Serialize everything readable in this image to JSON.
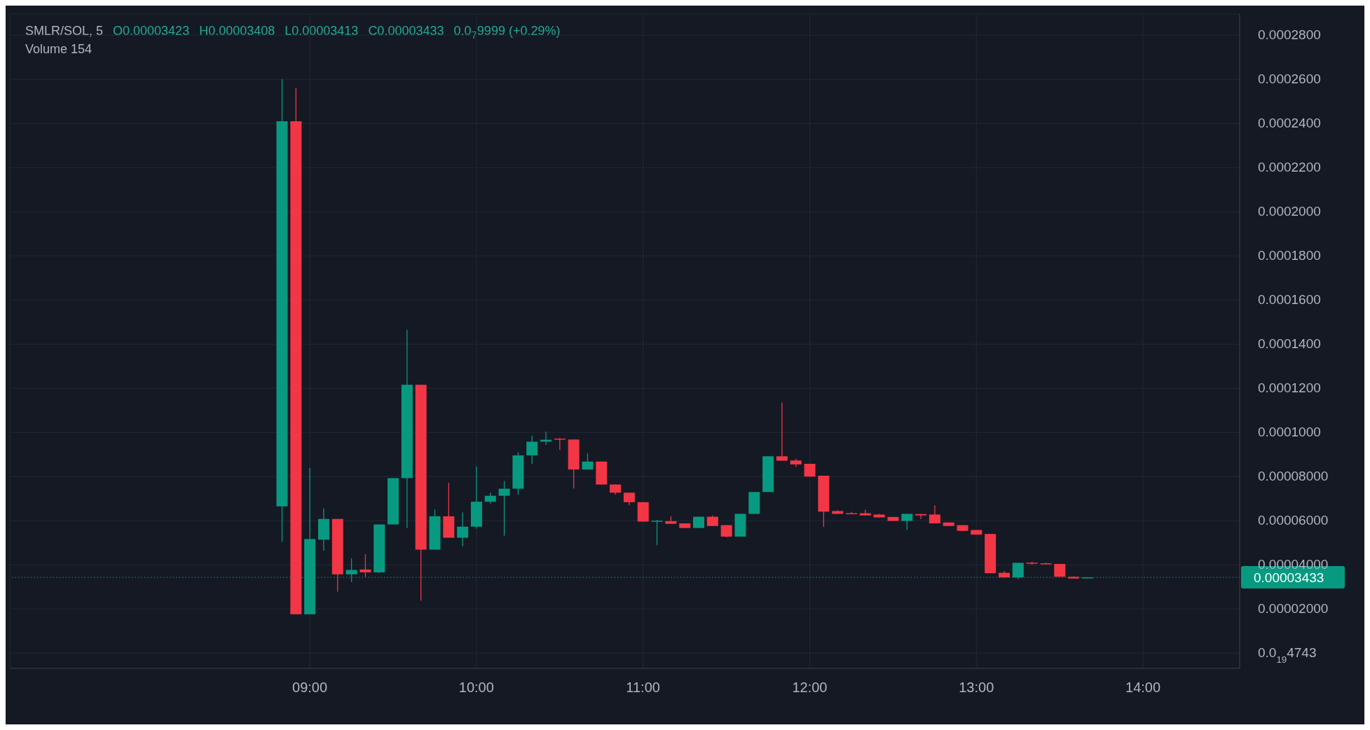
{
  "chart_data": {
    "type": "candlestick",
    "title": "SMLR/SOL, 5",
    "annotations": [
      "O0.00003423",
      "H0.00003408",
      "L0.00003413",
      "C0.00003433",
      "0.0$_{7}$9999 (+0.29%)",
      "Volume 154"
    ],
    "x": [
      8.8333,
      8.9167,
      9,
      9.0833,
      9.1667,
      9.25,
      9.3333,
      9.4167,
      9.5,
      9.5833,
      9.6667,
      9.75,
      9.8333,
      9.9167,
      10,
      10.0833,
      10.1667,
      10.25,
      10.3333,
      10.4167,
      10.5,
      10.5833,
      10.6667,
      10.75,
      10.8333,
      10.9167,
      11,
      11.0833,
      11.1667,
      11.25,
      11.3333,
      11.4167,
      11.5,
      11.5833,
      11.6667,
      11.75,
      11.8333,
      11.9167,
      12,
      12.0833,
      12.1667,
      12.25,
      12.3333,
      12.4167,
      12.5,
      12.5833,
      12.6667,
      12.75,
      12.8333,
      12.9167,
      13,
      13.0833,
      13.1667,
      13.25,
      13.3333,
      13.4167,
      13.5,
      13.5833,
      13.6667
    ],
    "ohlc": [
      [
        6.65e-05,
        0.00026,
        5.05e-05,
        0.000241
      ],
      [
        0.000241,
        0.000256,
        1.76e-05,
        1.76e-05
      ],
      [
        1.76e-05,
        8.39e-05,
        1.76e-05,
        5.17e-05
      ],
      [
        5.14e-05,
        6.56e-05,
        4.64e-05,
        6.08e-05
      ],
      [
        6.08e-05,
        6.08e-05,
        2.79e-05,
        3.57e-05
      ],
      [
        3.57e-05,
        4.3e-05,
        3.22e-05,
        3.77e-05
      ],
      [
        3.79e-05,
        4.48e-05,
        3.45e-05,
        3.66e-05
      ],
      [
        3.66e-05,
        5.83e-05,
        3.62e-05,
        5.83e-05
      ],
      [
        5.83e-05,
        7.93e-05,
        5.83e-05,
        7.93e-05
      ],
      [
        7.93e-05,
        0.0001465,
        5.67e-05,
        0.0001216
      ],
      [
        0.0001216,
        0.0001216,
        2.38e-05,
        4.69e-05
      ],
      [
        4.69e-05,
        6.51e-05,
        4.69e-05,
        6.2e-05
      ],
      [
        6.2e-05,
        7.72e-05,
        5.23e-05,
        5.23e-05
      ],
      [
        5.23e-05,
        6.38e-05,
        4.84e-05,
        5.73e-05
      ],
      [
        5.73e-05,
        8.46e-05,
        5.64e-05,
        6.86e-05
      ],
      [
        6.86e-05,
        7.27e-05,
        6.77e-05,
        7.13e-05
      ],
      [
        7.13e-05,
        7.8e-05,
        5.32e-05,
        7.45e-05
      ],
      [
        7.45e-05,
        9.1e-05,
        7.18e-05,
        8.96e-05
      ],
      [
        8.96e-05,
        9.85e-05,
        8.57e-05,
        9.58e-05
      ],
      [
        9.58e-05,
        0.0001003,
        9.44e-05,
        9.67e-05
      ],
      [
        9.72e-05,
        9.75e-05,
        9.21e-05,
        9.68e-05
      ],
      [
        9.68e-05,
        9.68e-05,
        7.46e-05,
        8.32e-05
      ],
      [
        8.32e-05,
        9.04e-05,
        8.32e-05,
        8.68e-05
      ],
      [
        8.68e-05,
        8.68e-05,
        7.64e-05,
        7.64e-05
      ],
      [
        7.64e-05,
        7.64e-05,
        7.18e-05,
        7.27e-05
      ],
      [
        7.27e-05,
        7.27e-05,
        6.7e-05,
        6.84e-05
      ],
      [
        6.84e-05,
        6.84e-05,
        5.96e-05,
        5.96e-05
      ],
      [
        5.96e-05,
        6.04e-05,
        4.9e-05,
        6e-05
      ],
      [
        5.98e-05,
        6.2e-05,
        5.86e-05,
        5.86e-05
      ],
      [
        5.88e-05,
        5.88e-05,
        5.67e-05,
        5.67e-05
      ],
      [
        5.67e-05,
        6.18e-05,
        5.67e-05,
        6.18e-05
      ],
      [
        6.18e-05,
        6.24e-05,
        5.76e-05,
        5.76e-05
      ],
      [
        5.8e-05,
        5.8e-05,
        5.25e-05,
        5.28e-05
      ],
      [
        5.28e-05,
        6.31e-05,
        5.28e-05,
        6.31e-05
      ],
      [
        6.31e-05,
        7.3e-05,
        6.31e-05,
        7.3e-05
      ],
      [
        7.3e-05,
        8.92e-05,
        7.3e-05,
        8.92e-05
      ],
      [
        8.92e-05,
        0.0001136,
        8.72e-05,
        8.72e-05
      ],
      [
        8.73e-05,
        8.8e-05,
        8.44e-05,
        8.55e-05
      ],
      [
        8.58e-05,
        8.58e-05,
        8e-05,
        8e-05
      ],
      [
        8.04e-05,
        8.04e-05,
        5.72e-05,
        6.41e-05
      ],
      [
        6.44e-05,
        6.48e-05,
        6.31e-05,
        6.31e-05
      ],
      [
        6.34e-05,
        6.4e-05,
        6.31e-05,
        6.31e-05
      ],
      [
        6.34e-05,
        6.5e-05,
        6.24e-05,
        6.24e-05
      ],
      [
        6.28e-05,
        6.31e-05,
        6.15e-05,
        6.15e-05
      ],
      [
        6.17e-05,
        6.17e-05,
        5.99e-05,
        5.99e-05
      ],
      [
        5.99e-05,
        6.31e-05,
        5.58e-05,
        6.31e-05
      ],
      [
        6.3e-05,
        6.31e-05,
        6.08e-05,
        6.24e-05
      ],
      [
        6.28e-05,
        6.7e-05,
        5.88e-05,
        5.88e-05
      ],
      [
        5.92e-05,
        5.92e-05,
        5.76e-05,
        5.76e-05
      ],
      [
        5.8e-05,
        5.8e-05,
        5.54e-05,
        5.54e-05
      ],
      [
        5.58e-05,
        5.58e-05,
        5.37e-05,
        5.37e-05
      ],
      [
        5.4e-05,
        5.4e-05,
        3.62e-05,
        3.62e-05
      ],
      [
        3.64e-05,
        3.72e-05,
        3.43e-05,
        3.43e-05
      ],
      [
        3.43e-05,
        4.09e-05,
        3.35e-05,
        4.09e-05
      ],
      [
        4.1e-05,
        4.14e-05,
        4.01e-05,
        4.07e-05
      ],
      [
        4.07e-05,
        4.1e-05,
        4.04e-05,
        4.04e-05
      ],
      [
        4.04e-05,
        4.04e-05,
        3.46e-05,
        3.46e-05
      ],
      [
        3.46e-05,
        3.48e-05,
        3.38e-05,
        3.38e-05
      ],
      [
        3.423e-05,
        3.433e-05,
        3.423e-05,
        3.433e-05
      ]
    ],
    "colors": [
      "#089981",
      "#f23645",
      "#089981",
      "#089981",
      "#f23645",
      "#089981",
      "#f23645",
      "#089981",
      "#089981",
      "#089981",
      "#f23645",
      "#089981",
      "#f23645",
      "#089981",
      "#089981",
      "#089981",
      "#089981",
      "#089981",
      "#089981",
      "#089981",
      "#f23645",
      "#f23645",
      "#089981",
      "#f23645",
      "#f23645",
      "#f23645",
      "#f23645",
      "#089981",
      "#f23645",
      "#f23645",
      "#089981",
      "#f23645",
      "#f23645",
      "#089981",
      "#089981",
      "#089981",
      "#f23645",
      "#f23645",
      "#f23645",
      "#f23645",
      "#f23645",
      "#f23645",
      "#f23645",
      "#f23645",
      "#f23645",
      "#089981",
      "#f23645",
      "#f23645",
      "#f23645",
      "#f23645",
      "#f23645",
      "#f23645",
      "#f23645",
      "#089981",
      "#f23645",
      "#f23645",
      "#f23645",
      "#f23645",
      "#089981"
    ],
    "xlim": [
      7.2,
      14.58
    ],
    "xticks": [
      {
        "value": 9,
        "label": "09:00"
      },
      {
        "value": 10,
        "label": "10:00"
      },
      {
        "value": 11,
        "label": "11:00"
      },
      {
        "value": 12,
        "label": "12:00"
      },
      {
        "value": 13,
        "label": "13:00"
      },
      {
        "value": 14,
        "label": "14:00"
      }
    ],
    "ylim": [
      -6.9e-06,
      0.0002896
    ],
    "yticks": [
      {
        "value": 4.743e-20,
        "label": "0.0$_{19}$4743"
      },
      {
        "value": 2e-05,
        "label": "0.00002000"
      },
      {
        "value": 4e-05,
        "label": "0.00004000"
      },
      {
        "value": 6e-05,
        "label": "0.00006000"
      },
      {
        "value": 8e-05,
        "label": "0.00008000"
      },
      {
        "value": 0.0001,
        "label": "0.0001000"
      },
      {
        "value": 0.00012,
        "label": "0.0001200"
      },
      {
        "value": 0.00014,
        "label": "0.0001400"
      },
      {
        "value": 0.00016,
        "label": "0.0001600"
      },
      {
        "value": 0.00018,
        "label": "0.0001800"
      },
      {
        "value": 0.0002,
        "label": "0.0002000"
      },
      {
        "value": 0.00022,
        "label": "0.0002200"
      },
      {
        "value": 0.00024,
        "label": "0.0002400"
      },
      {
        "value": 0.00026,
        "label": "0.0002600"
      },
      {
        "value": 0.00028,
        "label": "0.0002800"
      }
    ],
    "ref_lines": [
      {
        "axis": "y",
        "value": 3.433e-05,
        "label": "0.00003433",
        "color": "#089981",
        "line_style": "dotted"
      }
    ],
    "grid": true
  }
}
